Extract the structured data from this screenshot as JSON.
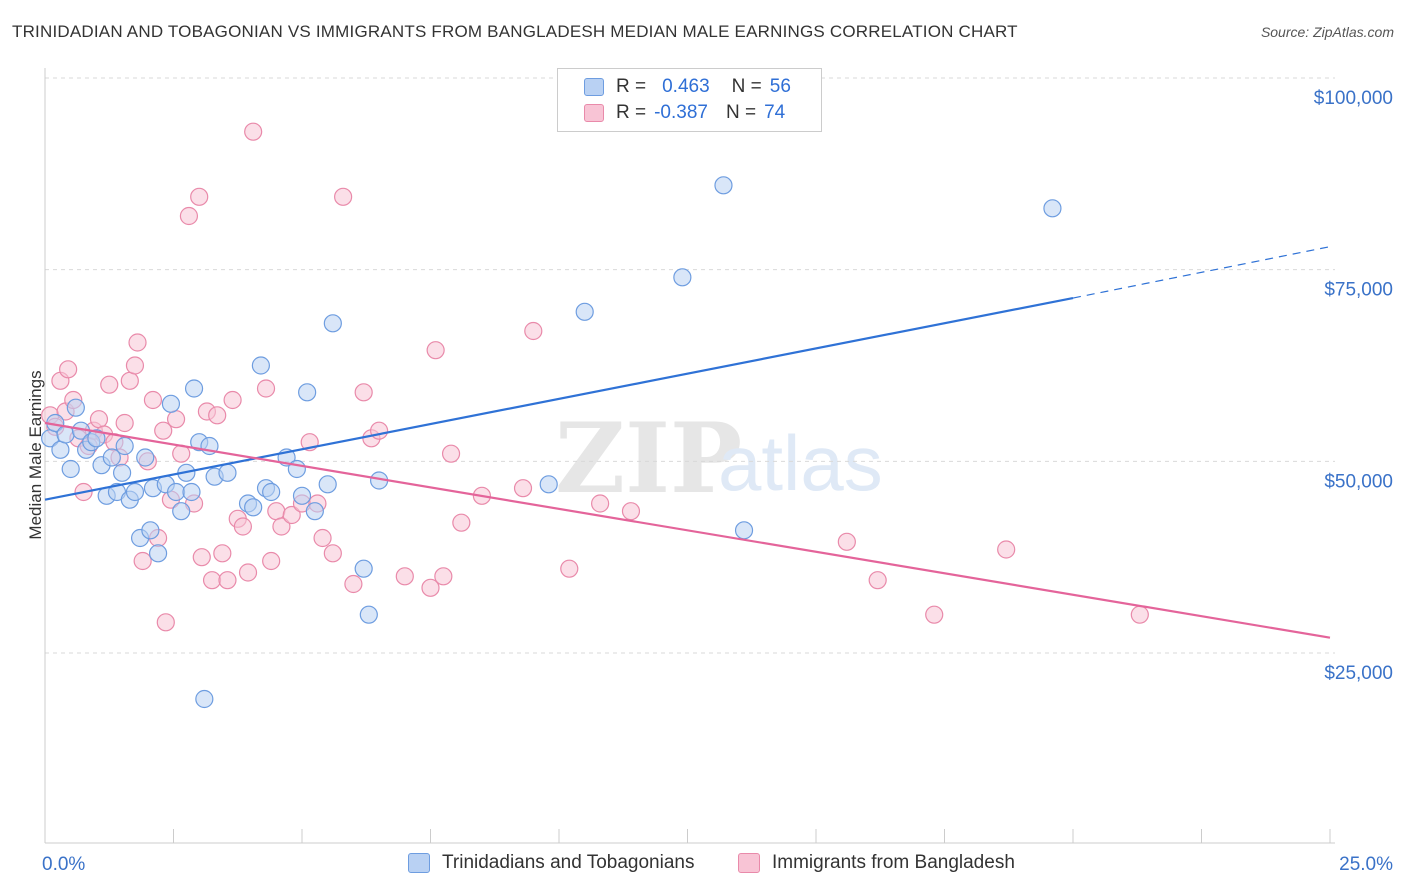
{
  "title": "TRINIDADIAN AND TOBAGONIAN VS IMMIGRANTS FROM BANGLADESH MEDIAN MALE EARNINGS CORRELATION CHART",
  "source": "Source: ZipAtlas.com",
  "legend": {
    "rows": [
      {
        "r_label": "R =",
        "r_value": "0.463",
        "n_label": "N =",
        "n_value": "56"
      },
      {
        "r_label": "R =",
        "r_value": "-0.387",
        "n_label": "N =",
        "n_value": "74"
      }
    ]
  },
  "colors": {
    "blue_fill": "#b9d1f3",
    "blue_stroke": "#6e9de0",
    "blue_line": "#2f72d6",
    "pink_fill": "#f8c4d5",
    "pink_stroke": "#e98aaa",
    "pink_line": "#e4649a",
    "grid": "#d9d9d9",
    "tick_label": "#3a72c8"
  },
  "chart_data": {
    "type": "scatter",
    "title": "TRINIDADIAN AND TOBAGONIAN VS IMMIGRANTS FROM BANGLADESH MEDIAN MALE EARNINGS CORRELATION CHART",
    "xlabel": "",
    "ylabel": "Median Male Earnings",
    "xlim": [
      0,
      25
    ],
    "ylim": [
      0,
      105000
    ],
    "x_tick_labels": [
      "0.0%",
      "25.0%"
    ],
    "y_ticks": [
      25000,
      50000,
      75000,
      100000
    ],
    "y_tick_labels": [
      "$25,000",
      "$50,000",
      "$75,000",
      "$100,000"
    ],
    "watermark": {
      "zip": "ZIP",
      "atlas": "atlas"
    },
    "series": [
      {
        "name": "Trinidadians and Tobagonians",
        "trend": {
          "x0": 0,
          "y0": 45000,
          "x1": 20,
          "y1": 71300,
          "dash_to_x": 25,
          "dash_to_y": 78000
        },
        "points": [
          [
            0.1,
            53000
          ],
          [
            0.2,
            55000
          ],
          [
            0.3,
            51500
          ],
          [
            0.4,
            53500
          ],
          [
            0.5,
            49000
          ],
          [
            0.6,
            57000
          ],
          [
            0.7,
            54000
          ],
          [
            0.8,
            51500
          ],
          [
            0.9,
            52500
          ],
          [
            1.0,
            53000
          ],
          [
            1.1,
            49500
          ],
          [
            1.2,
            45500
          ],
          [
            1.3,
            50500
          ],
          [
            1.4,
            46000
          ],
          [
            1.5,
            48500
          ],
          [
            1.55,
            52000
          ],
          [
            1.65,
            45000
          ],
          [
            1.75,
            46000
          ],
          [
            1.85,
            40000
          ],
          [
            1.95,
            50500
          ],
          [
            2.05,
            41000
          ],
          [
            2.1,
            46500
          ],
          [
            2.2,
            38000
          ],
          [
            2.35,
            47000
          ],
          [
            2.45,
            57500
          ],
          [
            2.55,
            46000
          ],
          [
            2.65,
            43500
          ],
          [
            2.75,
            48500
          ],
          [
            2.85,
            46000
          ],
          [
            2.9,
            59500
          ],
          [
            3.0,
            52500
          ],
          [
            3.1,
            19000
          ],
          [
            3.2,
            52000
          ],
          [
            3.3,
            48000
          ],
          [
            3.55,
            48500
          ],
          [
            3.95,
            44500
          ],
          [
            4.05,
            44000
          ],
          [
            4.2,
            62500
          ],
          [
            4.3,
            46500
          ],
          [
            4.4,
            46000
          ],
          [
            4.7,
            50500
          ],
          [
            4.9,
            49000
          ],
          [
            5.0,
            45500
          ],
          [
            5.1,
            59000
          ],
          [
            5.25,
            43500
          ],
          [
            5.5,
            47000
          ],
          [
            5.6,
            68000
          ],
          [
            6.2,
            36000
          ],
          [
            6.3,
            30000
          ],
          [
            6.5,
            47500
          ],
          [
            9.8,
            47000
          ],
          [
            10.5,
            69500
          ],
          [
            12.4,
            74000
          ],
          [
            13.2,
            86000
          ],
          [
            13.6,
            41000
          ],
          [
            19.6,
            83000
          ]
        ]
      },
      {
        "name": "Immigrants from Bangladesh",
        "trend": {
          "x0": 0,
          "y0": 55000,
          "x1": 25,
          "y1": 27000
        },
        "points": [
          [
            0.1,
            56000
          ],
          [
            0.2,
            54500
          ],
          [
            0.3,
            60500
          ],
          [
            0.4,
            56500
          ],
          [
            0.45,
            62000
          ],
          [
            0.55,
            58000
          ],
          [
            0.65,
            53000
          ],
          [
            0.75,
            46000
          ],
          [
            0.85,
            52000
          ],
          [
            0.95,
            54000
          ],
          [
            1.05,
            55500
          ],
          [
            1.15,
            53500
          ],
          [
            1.25,
            60000
          ],
          [
            1.35,
            52500
          ],
          [
            1.45,
            50500
          ],
          [
            1.55,
            55000
          ],
          [
            1.65,
            60500
          ],
          [
            1.75,
            62500
          ],
          [
            1.8,
            65500
          ],
          [
            1.9,
            37000
          ],
          [
            2.0,
            50000
          ],
          [
            2.1,
            58000
          ],
          [
            2.2,
            40000
          ],
          [
            2.3,
            54000
          ],
          [
            2.35,
            29000
          ],
          [
            2.45,
            45000
          ],
          [
            2.55,
            55500
          ],
          [
            2.65,
            51000
          ],
          [
            2.8,
            82000
          ],
          [
            2.9,
            44500
          ],
          [
            3.0,
            84500
          ],
          [
            3.05,
            37500
          ],
          [
            3.15,
            56500
          ],
          [
            3.25,
            34500
          ],
          [
            3.35,
            56000
          ],
          [
            3.45,
            38000
          ],
          [
            3.55,
            34500
          ],
          [
            3.65,
            58000
          ],
          [
            3.75,
            42500
          ],
          [
            3.85,
            41500
          ],
          [
            3.95,
            35500
          ],
          [
            4.05,
            93000
          ],
          [
            4.3,
            59500
          ],
          [
            4.4,
            37000
          ],
          [
            4.5,
            43500
          ],
          [
            4.6,
            41500
          ],
          [
            4.8,
            43000
          ],
          [
            5.0,
            44500
          ],
          [
            5.15,
            52500
          ],
          [
            5.3,
            44500
          ],
          [
            5.4,
            40000
          ],
          [
            5.6,
            38000
          ],
          [
            5.8,
            84500
          ],
          [
            6.0,
            34000
          ],
          [
            6.2,
            59000
          ],
          [
            6.35,
            53000
          ],
          [
            6.5,
            54000
          ],
          [
            7.0,
            35000
          ],
          [
            7.5,
            33500
          ],
          [
            7.6,
            64500
          ],
          [
            7.75,
            35000
          ],
          [
            7.9,
            51000
          ],
          [
            8.1,
            42000
          ],
          [
            8.5,
            45500
          ],
          [
            9.3,
            46500
          ],
          [
            9.5,
            67000
          ],
          [
            10.2,
            36000
          ],
          [
            10.8,
            44500
          ],
          [
            11.4,
            43500
          ],
          [
            15.6,
            39500
          ],
          [
            16.2,
            34500
          ],
          [
            17.3,
            30000
          ],
          [
            18.7,
            38500
          ],
          [
            21.3,
            30000
          ]
        ]
      }
    ]
  },
  "bottom_legend": {
    "items": [
      {
        "label": "Trinidadians and Tobagonians"
      },
      {
        "label": "Immigrants from Bangladesh"
      }
    ]
  }
}
